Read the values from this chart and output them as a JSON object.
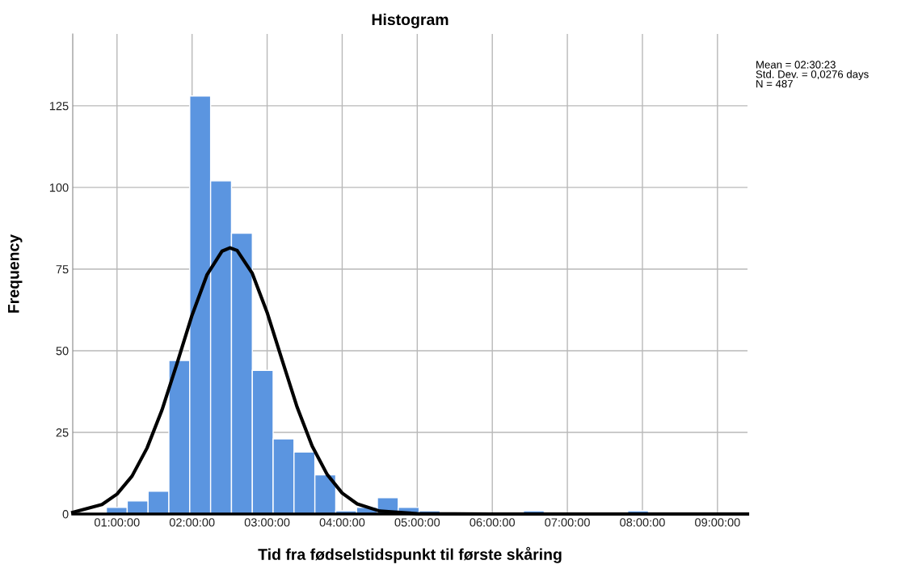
{
  "chart_data": {
    "type": "histogram",
    "title": "Histogram",
    "xlabel": "Tid fra fødselstidspunkt til første skåring",
    "ylabel": "Frequency",
    "annotations": [
      "Mean = 02:30:23\nStd. Dev. = 0,0276 days\nN = 487"
    ],
    "bins": [
      0.858,
      1.136,
      1.414,
      1.691,
      1.969,
      2.247,
      2.525,
      2.803,
      3.08,
      3.358,
      3.636,
      3.914,
      4.192,
      4.469,
      4.747,
      5.025,
      5.303,
      5.581,
      5.858,
      6.136,
      6.414,
      6.692,
      6.97,
      7.247,
      7.525,
      7.803,
      8.081
    ],
    "values": [
      2,
      4,
      7,
      47,
      128,
      102,
      86,
      44,
      23,
      19,
      12,
      1,
      2,
      5,
      2,
      1,
      0,
      0,
      0,
      0,
      1,
      0,
      0,
      0,
      0,
      1
    ],
    "color": "#5b95e0",
    "series": [
      {
        "type": "line",
        "color": "#000000",
        "x": [
          0.41,
          0.8,
          1.0,
          1.2,
          1.4,
          1.6,
          1.8,
          2.0,
          2.2,
          2.4,
          2.506,
          2.6,
          2.8,
          3.0,
          3.2,
          3.4,
          3.6,
          3.8,
          4.0,
          4.2,
          4.5,
          5.0,
          6.0,
          7.0,
          8.0,
          9.4
        ],
        "values": [
          0.5,
          2.9,
          6.1,
          11.6,
          20.2,
          31.9,
          46.1,
          60.9,
          73.3,
          80.5,
          81.5,
          80.7,
          73.8,
          61.7,
          47.1,
          32.7,
          20.8,
          12.1,
          6.4,
          3.1,
          0.9,
          0.1,
          0,
          0,
          0,
          0
        ]
      }
    ],
    "xlim": [
      0.41,
      9.4
    ],
    "ylim": [
      0,
      147
    ],
    "xticks": [
      {
        "value": 1,
        "label": "01:00:00"
      },
      {
        "value": 2,
        "label": "02:00:00"
      },
      {
        "value": 3,
        "label": "03:00:00"
      },
      {
        "value": 4,
        "label": "04:00:00"
      },
      {
        "value": 5,
        "label": "05:00:00"
      },
      {
        "value": 6,
        "label": "06:00:00"
      },
      {
        "value": 7,
        "label": "07:00:00"
      },
      {
        "value": 8,
        "label": "08:00:00"
      },
      {
        "value": 9,
        "label": "09:00:00"
      }
    ],
    "yticks": [
      0,
      25,
      50,
      75,
      100,
      125
    ],
    "grid": true,
    "line_style": "solid",
    "marker": "none"
  }
}
